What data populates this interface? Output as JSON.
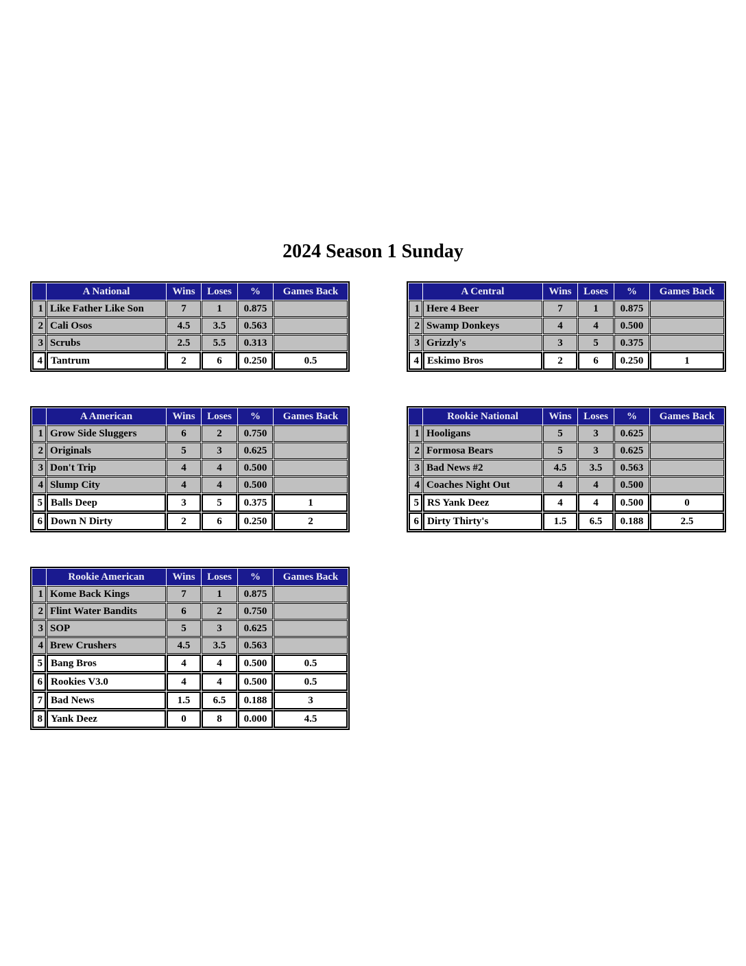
{
  "title": "2024 Season 1 Sunday",
  "columns": {
    "wins": "Wins",
    "loses": "Loses",
    "pct": "%",
    "gb": "Games Back"
  },
  "colors": {
    "header_bg": "#1A1A8F",
    "header_text": "#EDEDF5",
    "row_bg_gray": "#C0C0C0",
    "row_bg_white": "#FFFFFF",
    "border": "#000000"
  },
  "tables": [
    {
      "name": "A National",
      "rows": [
        {
          "rank": "1",
          "team": "Like Father Like Son",
          "wins": "7",
          "loses": "1",
          "pct": "0.875",
          "gb": "",
          "below_line": false
        },
        {
          "rank": "2",
          "team": "Cali Osos",
          "wins": "4.5",
          "loses": "3.5",
          "pct": "0.563",
          "gb": "",
          "below_line": false
        },
        {
          "rank": "3",
          "team": "Scrubs",
          "wins": "2.5",
          "loses": "5.5",
          "pct": "0.313",
          "gb": "",
          "below_line": false
        },
        {
          "rank": "4",
          "team": "Tantrum",
          "wins": "2",
          "loses": "6",
          "pct": "0.250",
          "gb": "0.5",
          "below_line": true
        }
      ]
    },
    {
      "name": "A Central",
      "rows": [
        {
          "rank": "1",
          "team": "Here 4 Beer",
          "wins": "7",
          "loses": "1",
          "pct": "0.875",
          "gb": "",
          "below_line": false
        },
        {
          "rank": "2",
          "team": "Swamp Donkeys",
          "wins": "4",
          "loses": "4",
          "pct": "0.500",
          "gb": "",
          "below_line": false
        },
        {
          "rank": "3",
          "team": "Grizzly's",
          "wins": "3",
          "loses": "5",
          "pct": "0.375",
          "gb": "",
          "below_line": false
        },
        {
          "rank": "4",
          "team": "Eskimo Bros",
          "wins": "2",
          "loses": "6",
          "pct": "0.250",
          "gb": "1",
          "below_line": true
        }
      ]
    },
    {
      "name": "A American",
      "rows": [
        {
          "rank": "1",
          "team": "Grow Side Sluggers",
          "wins": "6",
          "loses": "2",
          "pct": "0.750",
          "gb": "",
          "below_line": false
        },
        {
          "rank": "2",
          "team": "Originals",
          "wins": "5",
          "loses": "3",
          "pct": "0.625",
          "gb": "",
          "below_line": false
        },
        {
          "rank": "3",
          "team": "Don't Trip",
          "wins": "4",
          "loses": "4",
          "pct": "0.500",
          "gb": "",
          "below_line": false
        },
        {
          "rank": "4",
          "team": "Slump City",
          "wins": "4",
          "loses": "4",
          "pct": "0.500",
          "gb": "",
          "below_line": false
        },
        {
          "rank": "5",
          "team": "Balls Deep",
          "wins": "3",
          "loses": "5",
          "pct": "0.375",
          "gb": "1",
          "below_line": true
        },
        {
          "rank": "6",
          "team": "Down N Dirty",
          "wins": "2",
          "loses": "6",
          "pct": "0.250",
          "gb": "2",
          "below_line": true
        }
      ]
    },
    {
      "name": "Rookie National",
      "rows": [
        {
          "rank": "1",
          "team": "Hooligans",
          "wins": "5",
          "loses": "3",
          "pct": "0.625",
          "gb": "",
          "below_line": false
        },
        {
          "rank": "2",
          "team": "Formosa Bears",
          "wins": "5",
          "loses": "3",
          "pct": "0.625",
          "gb": "",
          "below_line": false
        },
        {
          "rank": "3",
          "team": "Bad News #2",
          "wins": "4.5",
          "loses": "3.5",
          "pct": "0.563",
          "gb": "",
          "below_line": false
        },
        {
          "rank": "4",
          "team": "Coaches Night Out",
          "wins": "4",
          "loses": "4",
          "pct": "0.500",
          "gb": "",
          "below_line": false
        },
        {
          "rank": "5",
          "team": "RS Yank Deez",
          "wins": "4",
          "loses": "4",
          "pct": "0.500",
          "gb": "0",
          "below_line": true
        },
        {
          "rank": "6",
          "team": "Dirty Thirty's",
          "wins": "1.5",
          "loses": "6.5",
          "pct": "0.188",
          "gb": "2.5",
          "below_line": true
        }
      ]
    },
    {
      "name": "Rookie American",
      "rows": [
        {
          "rank": "1",
          "team": "Kome Back Kings",
          "wins": "7",
          "loses": "1",
          "pct": "0.875",
          "gb": "",
          "below_line": false
        },
        {
          "rank": "2",
          "team": "Flint Water Bandits",
          "wins": "6",
          "loses": "2",
          "pct": "0.750",
          "gb": "",
          "below_line": false
        },
        {
          "rank": "3",
          "team": "SOP",
          "wins": "5",
          "loses": "3",
          "pct": "0.625",
          "gb": "",
          "below_line": false
        },
        {
          "rank": "4",
          "team": "Brew Crushers",
          "wins": "4.5",
          "loses": "3.5",
          "pct": "0.563",
          "gb": "",
          "below_line": false
        },
        {
          "rank": "5",
          "team": "Bang Bros",
          "wins": "4",
          "loses": "4",
          "pct": "0.500",
          "gb": "0.5",
          "below_line": true
        },
        {
          "rank": "6",
          "team": "Rookies V3.0",
          "wins": "4",
          "loses": "4",
          "pct": "0.500",
          "gb": "0.5",
          "below_line": true
        },
        {
          "rank": "7",
          "team": "Bad News",
          "wins": "1.5",
          "loses": "6.5",
          "pct": "0.188",
          "gb": "3",
          "below_line": true
        },
        {
          "rank": "8",
          "team": "Yank Deez",
          "wins": "0",
          "loses": "8",
          "pct": "0.000",
          "gb": "4.5",
          "below_line": true
        }
      ]
    }
  ]
}
